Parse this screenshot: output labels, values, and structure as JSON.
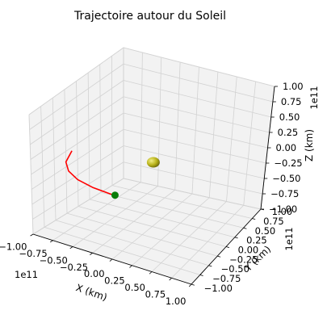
{
  "chart_data": {
    "type": "line3d",
    "title": "Trajectoire autour du Soleil",
    "xlabel": "X (km)",
    "ylabel": "Y (km)",
    "zlabel": "Z (km)",
    "offset_text": {
      "x": "1e11",
      "y": "1e11",
      "z": "1e11"
    },
    "xlim": [
      -1.0,
      1.0
    ],
    "ylim": [
      -1.0,
      1.0
    ],
    "zlim": [
      -1.0,
      1.0
    ],
    "x_ticks": [
      "−1.00",
      "−0.75",
      "−0.50",
      "−0.25",
      "0.00",
      "0.25",
      "0.50",
      "0.75",
      "1.00"
    ],
    "y_ticks": [
      "−1.00",
      "−0.75",
      "−0.50",
      "−0.25",
      "0.00",
      "0.25",
      "0.50",
      "0.75",
      "1.00"
    ],
    "z_ticks": [
      "−1.00",
      "−0.75",
      "−0.50",
      "−0.25",
      "0.00",
      "0.25",
      "0.50",
      "0.75",
      "1.00"
    ],
    "grid": true,
    "pane_color": "#f2f2f2",
    "series": [
      {
        "type": "line",
        "color": "#ff0000",
        "x": [
          -0.95,
          -0.85,
          -0.7,
          -0.5,
          -0.25,
          0.0,
          0.05
        ],
        "y": [
          -0.2,
          -0.5,
          -0.7,
          -0.85,
          -0.95,
          -1.0,
          -1.0
        ],
        "z": [
          0,
          0,
          0,
          0,
          0,
          0,
          0
        ]
      }
    ],
    "objects": [
      {
        "label": "sun",
        "x": 0,
        "y": 0,
        "z": 0,
        "color": "#c9c21a",
        "marker": "sphere"
      },
      {
        "label": "planet",
        "x": 0.05,
        "y": -1.0,
        "z": 0,
        "color": "#0a7d0a",
        "marker": "point"
      }
    ]
  }
}
